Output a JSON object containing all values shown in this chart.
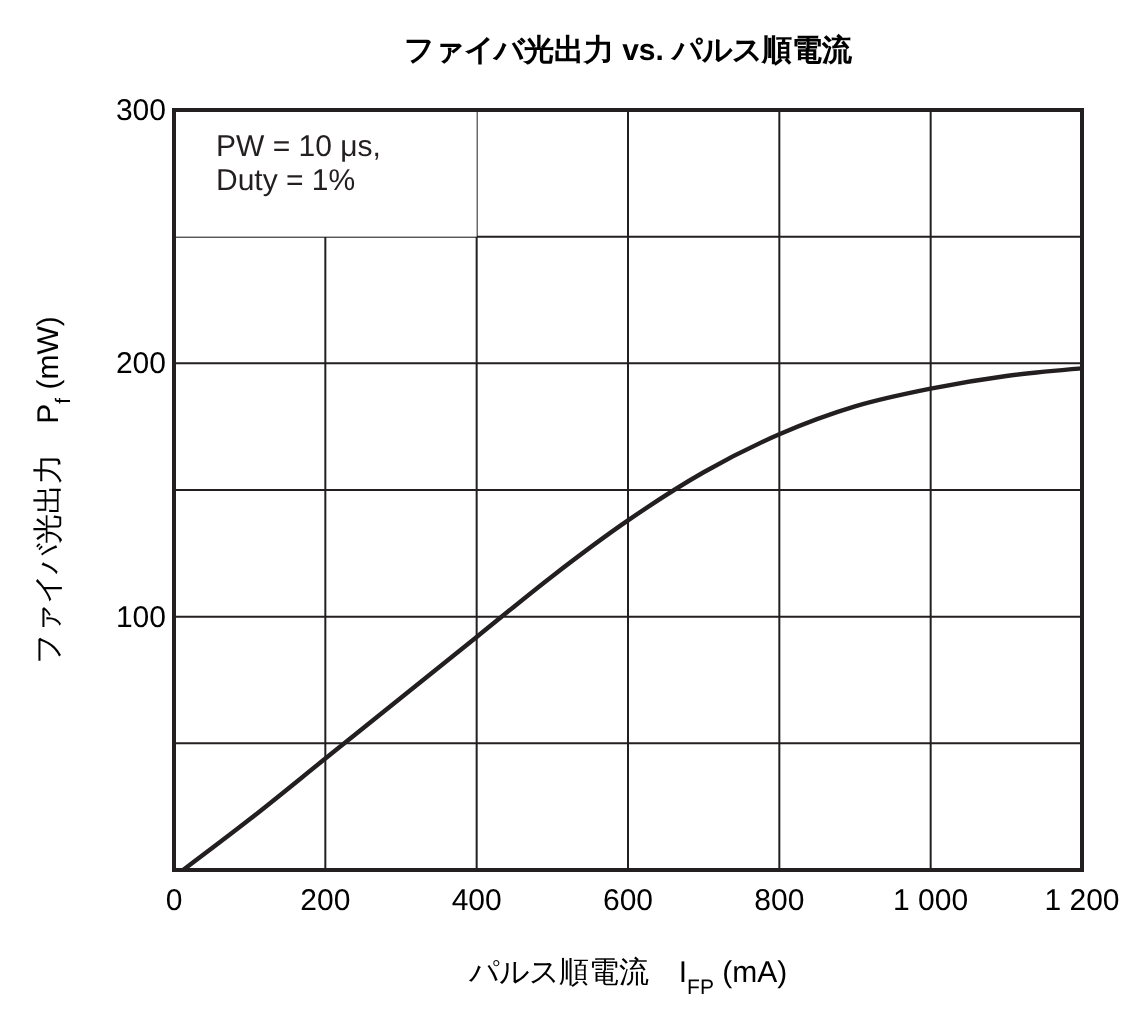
{
  "chart_data": {
    "type": "line",
    "title": "ファイバ光出力 vs. パルス順電流",
    "xlabel": "パルス順電流　I$_{FP}$ (mA)",
    "ylabel": "ファイバ光出力　P$_{f}$ (mW)",
    "annotations": [
      "PW = 10 μs,",
      "Duty = 1%"
    ],
    "series": [
      {
        "color": "#231f20",
        "x": [
          12,
          100,
          200,
          300,
          400,
          500,
          600,
          700,
          800,
          900,
          1000,
          1100,
          1200
        ],
        "values": [
          0,
          20,
          44,
          68,
          92,
          116,
          138,
          157,
          172,
          183,
          190,
          195,
          198
        ]
      }
    ],
    "xlim": [
      0,
      1200
    ],
    "xticks": [
      0,
      200,
      400,
      600,
      800,
      {
        "value": 1000,
        "label": "1 000"
      },
      {
        "value": 1200,
        "label": "1 200"
      }
    ],
    "ylim": [
      0,
      300
    ],
    "yticks": [
      {
        "value": 0,
        "label": null
      },
      {
        "value": 50,
        "label": null
      },
      100,
      {
        "value": 150,
        "label": null
      },
      200,
      {
        "value": 250,
        "label": null
      },
      300
    ],
    "grid": true,
    "marker": "none",
    "line_style": "solid"
  }
}
